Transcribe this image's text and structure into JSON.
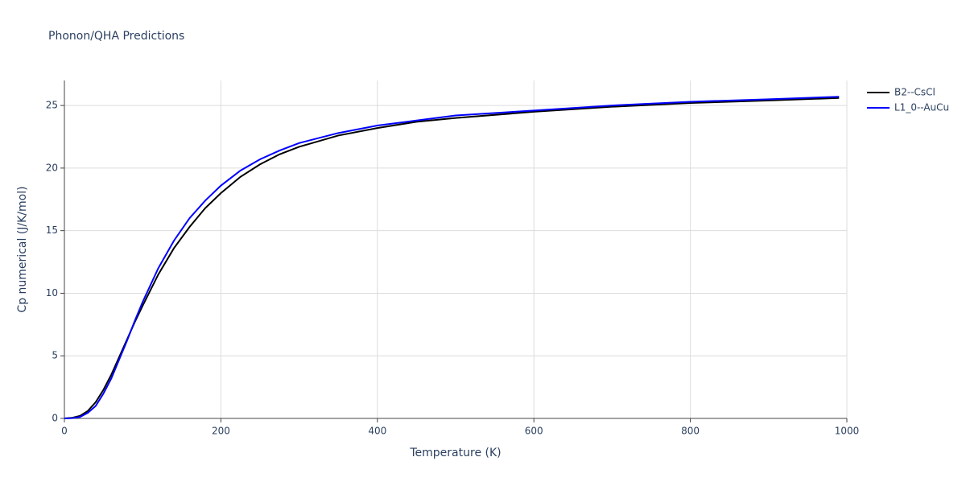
{
  "chart_data": {
    "type": "line",
    "title": "Phonon/QHA Predictions",
    "x_label": "Temperature (K)",
    "y_label": "Cp numerical (J/K/mol)",
    "x": [
      0,
      10,
      20,
      30,
      40,
      50,
      60,
      70,
      80,
      90,
      100,
      120,
      140,
      160,
      180,
      200,
      225,
      250,
      275,
      300,
      350,
      400,
      450,
      500,
      600,
      700,
      800,
      900,
      990
    ],
    "series": [
      {
        "name": "B2--CsCl",
        "color": "#000000",
        "values": [
          0,
          0.05,
          0.2,
          0.6,
          1.3,
          2.3,
          3.5,
          4.9,
          6.3,
          7.7,
          9.0,
          11.5,
          13.6,
          15.3,
          16.8,
          18.0,
          19.3,
          20.3,
          21.1,
          21.7,
          22.6,
          23.2,
          23.7,
          24.0,
          24.5,
          24.9,
          25.2,
          25.4,
          25.6
        ]
      },
      {
        "name": "L1_0--AuCu",
        "color": "#0000ff",
        "values": [
          0,
          0.02,
          0.12,
          0.45,
          1.0,
          2.0,
          3.2,
          4.7,
          6.2,
          7.8,
          9.3,
          12.0,
          14.2,
          16.0,
          17.4,
          18.6,
          19.8,
          20.7,
          21.4,
          22.0,
          22.8,
          23.4,
          23.8,
          24.2,
          24.6,
          25.0,
          25.3,
          25.5,
          25.7
        ]
      }
    ],
    "xlim": [
      0,
      1000
    ],
    "xticks": [
      0,
      200,
      400,
      600,
      800,
      1000
    ],
    "ylim": [
      0,
      27
    ],
    "yticks": [
      0,
      5,
      10,
      15,
      20,
      25
    ],
    "grid": true
  }
}
